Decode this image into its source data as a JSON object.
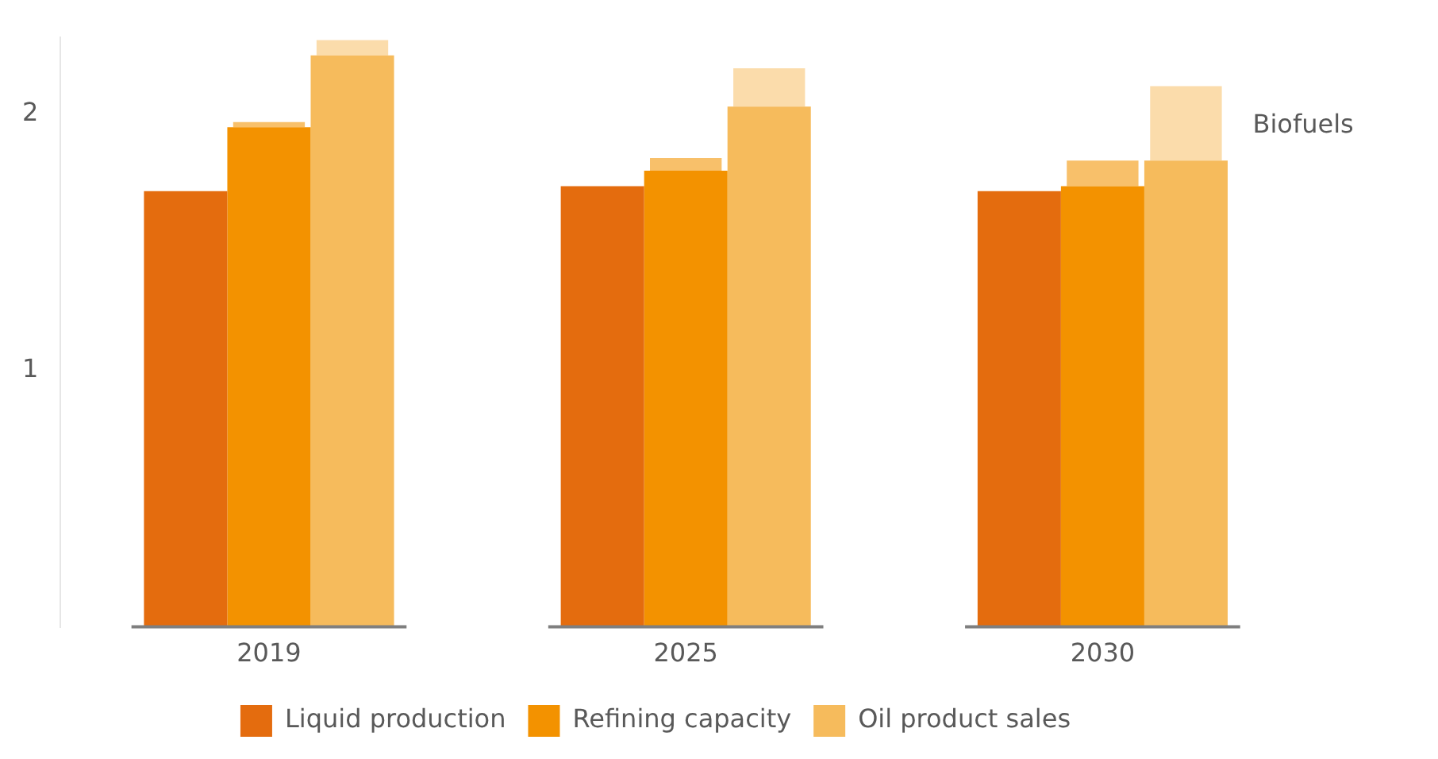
{
  "chart_data": {
    "type": "bar",
    "categories": [
      "2019",
      "2025",
      "2030"
    ],
    "series": [
      {
        "name": "Liquid production",
        "color": "#e46c0e",
        "values": [
          1.7,
          1.72,
          1.7
        ]
      },
      {
        "name": "Refining capacity",
        "color": "#f39200",
        "values": [
          1.95,
          1.78,
          1.72
        ]
      },
      {
        "color": "#f8c06a",
        "values": [
          0.02,
          0.05,
          0.1
        ],
        "base": [
          1.95,
          1.78,
          1.72
        ]
      },
      {
        "name": "Oil product sales",
        "color": "#f6bb5c",
        "values": [
          2.23,
          2.03,
          1.82
        ]
      },
      {
        "color": "#fbdcab",
        "values": [
          0.06,
          0.15,
          0.29
        ],
        "base": [
          2.23,
          2.03,
          1.82
        ]
      }
    ],
    "annotations": [
      "Biofuels"
    ],
    "ylim": [
      0,
      2.3
    ],
    "yticks": [
      1,
      2
    ],
    "grid": false,
    "legend": "bottom"
  }
}
